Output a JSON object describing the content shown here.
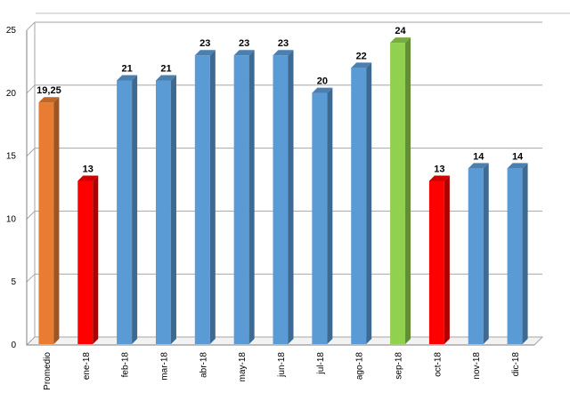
{
  "chart_data": {
    "type": "bar",
    "title": "",
    "xlabel": "",
    "ylabel": "",
    "ylim": [
      0,
      25
    ],
    "yticks": [
      0,
      5,
      10,
      15,
      20,
      25
    ],
    "grid": "horizontal",
    "style": "3d-bars",
    "categories": [
      "Promedio",
      "ene-18",
      "feb-18",
      "mar-18",
      "abr-18",
      "may-18",
      "jun-18",
      "jul-18",
      "ago-18",
      "sep-18",
      "oct-18",
      "nov-18",
      "dic-18"
    ],
    "values": [
      19.25,
      13,
      21,
      21,
      23,
      23,
      23,
      20,
      22,
      24,
      13,
      14,
      14
    ],
    "data_labels": [
      "19,25",
      "13",
      "21",
      "21",
      "23",
      "23",
      "23",
      "20",
      "22",
      "24",
      "13",
      "14",
      "14"
    ],
    "bar_colors": [
      "#E87D31",
      "#FF0000",
      "#5B9BD5",
      "#5B9BD5",
      "#5B9BD5",
      "#5B9BD5",
      "#5B9BD5",
      "#5B9BD5",
      "#5B9BD5",
      "#92D050",
      "#FF0000",
      "#5B9BD5",
      "#5B9BD5"
    ]
  }
}
